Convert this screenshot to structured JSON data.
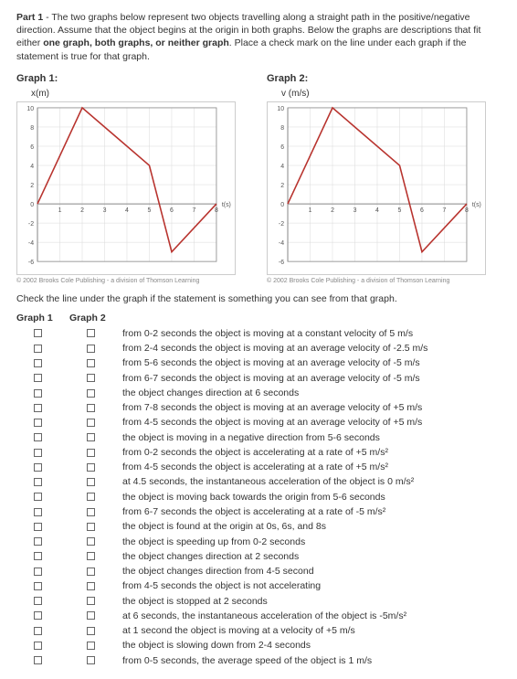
{
  "instructions": {
    "label": "Part 1",
    "text1": " - The two graphs below represent two objects travelling along a straight path in the positive/negative direction. Assume that the object begins at the origin in both graphs. Below the graphs are descriptions that fit either ",
    "bold2": "one graph, both graphs, or neither graph",
    "text2": ". Place a check mark on the line under each graph if the statement is true for that graph."
  },
  "graphs": [
    {
      "title": "Graph 1:",
      "ylabel": "x(m)",
      "xlabel": "t(s)",
      "xlim": [
        0,
        8
      ],
      "ylim": [
        -6,
        10
      ],
      "xtick_step": 1,
      "ytick_step": 2,
      "line_color": "#b8332e",
      "grid_color": "#d9d9d9",
      "axis_color": "#888",
      "background_color": "#ffffff",
      "points": [
        [
          0,
          0
        ],
        [
          2,
          10
        ],
        [
          5,
          4
        ],
        [
          6,
          -5
        ],
        [
          8,
          0
        ]
      ]
    },
    {
      "title": "Graph 2:",
      "ylabel": "v (m/s)",
      "xlabel": "t(s)",
      "xlim": [
        0,
        8
      ],
      "ylim": [
        -6,
        10
      ],
      "xtick_step": 1,
      "ytick_step": 2,
      "line_color": "#b8332e",
      "grid_color": "#d9d9d9",
      "axis_color": "#888",
      "background_color": "#ffffff",
      "points": [
        [
          0,
          0
        ],
        [
          2,
          10
        ],
        [
          5,
          4
        ],
        [
          6,
          -5
        ],
        [
          8,
          0
        ]
      ]
    }
  ],
  "copyright": "© 2002 Brooks Cole Publishing - a division of Thomson Learning",
  "check_line": "Check the line under the graph if the statement is something you can see from that graph.",
  "columns": {
    "col1": "Graph 1",
    "col2": "Graph 2"
  },
  "statements": [
    "from 0-2 seconds the object is moving at a constant velocity of 5 m/s",
    "from 2-4 seconds the object is moving at an average velocity of -2.5 m/s",
    "from 5-6 seconds the object is moving at an average velocity of -5 m/s",
    "from 6-7 seconds the object is moving at an average velocity of -5 m/s",
    "the object changes direction at 6 seconds",
    "from 7-8 seconds the object is moving at an average velocity of +5 m/s",
    "from 4-5 seconds the object is moving at an average velocity of +5 m/s",
    "the object is moving in a negative direction from 5-6 seconds",
    "from 0-2 seconds the object is accelerating at a rate of +5 m/s²",
    "from 4-5 seconds the object is accelerating at a rate of +5 m/s²",
    "at 4.5 seconds, the instantaneous acceleration of the object is 0 m/s²",
    "the object is moving back towards the origin from 5-6 seconds",
    "from 6-7 seconds the object is accelerating at a rate of -5 m/s²",
    "the object is found at the origin at 0s, 6s, and 8s",
    "the object is speeding up from 0-2 seconds",
    "the object changes direction at 2 seconds",
    "the object changes direction from 4-5 second",
    "from 4-5 seconds the object is not accelerating",
    "the object is stopped at 2 seconds",
    "at 6 seconds, the instantaneous acceleration of the object is -5m/s²",
    "at 1 second the object is moving at a velocity of +5 m/s",
    "the object is slowing down from 2-4 seconds",
    "from 0-5 seconds, the average speed of the object is 1 m/s"
  ]
}
